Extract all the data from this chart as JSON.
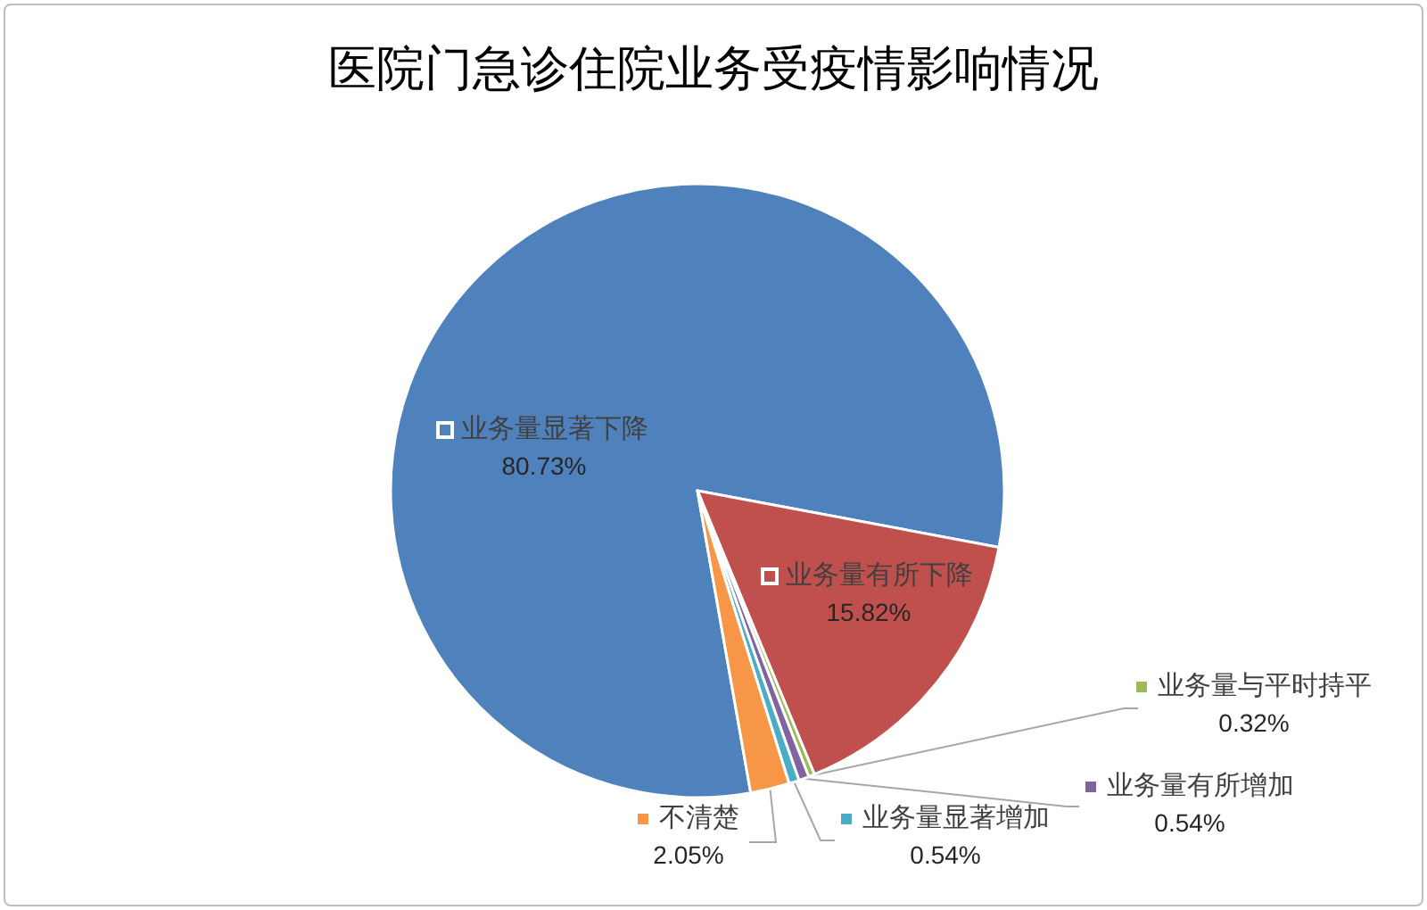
{
  "chart_data": {
    "type": "pie",
    "title": "医院门急诊住院业务受疫情影响情况",
    "categories": [
      "业务量显著下降",
      "业务量有所下降",
      "业务量与平时持平",
      "业务量有所增加",
      "业务量显著增加",
      "不清楚"
    ],
    "values": [
      80.73,
      15.82,
      0.32,
      0.54,
      0.54,
      2.05
    ],
    "colors": [
      "#4f81bd",
      "#c0504d",
      "#9bbb59",
      "#8064a2",
      "#4bacc6",
      "#f79646"
    ],
    "value_labels": [
      "80.73%",
      "15.82%",
      "0.32%",
      "0.54%",
      "0.54%",
      "2.05%"
    ],
    "legend": "bottom right"
  }
}
